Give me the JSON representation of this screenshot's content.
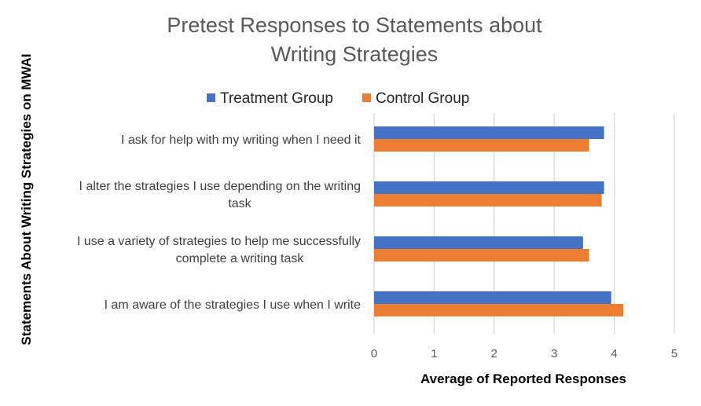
{
  "chart_data": {
    "type": "bar",
    "orientation": "horizontal",
    "title": "Pretest Responses to Statements about Writing Strategies",
    "title_lines": [
      "Pretest Responses to Statements about",
      "Writing Strategies"
    ],
    "xlabel": "Average of Reported Responses",
    "ylabel": "Statements About Writing Strategies on MWAI",
    "xlim": [
      0,
      5
    ],
    "xticks": [
      "0",
      "1",
      "2",
      "3",
      "4",
      "5"
    ],
    "grid": true,
    "legend_position": "top",
    "categories": [
      {
        "lines": [
          "I ask for help with my writing when I need it"
        ]
      },
      {
        "lines": [
          "I alter the strategies I use depending on the writing",
          "task"
        ]
      },
      {
        "lines": [
          "I use a variety of strategies to help me successfully",
          "complete a writing task"
        ]
      },
      {
        "lines": [
          "I am aware of the strategies I use when I write"
        ]
      }
    ],
    "series": [
      {
        "name": "Treatment Group",
        "color": "#4472c4",
        "values": [
          3.83,
          3.83,
          3.48,
          3.95
        ]
      },
      {
        "name": "Control Group",
        "color": "#ed7d31",
        "values": [
          3.58,
          3.79,
          3.58,
          4.15
        ]
      }
    ]
  }
}
